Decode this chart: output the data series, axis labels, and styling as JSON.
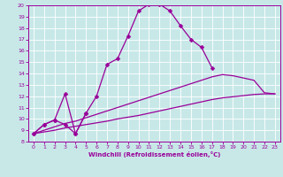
{
  "xlabel": "Windchill (Refroidissement éolien,°C)",
  "xlim": [
    -0.5,
    23.5
  ],
  "ylim": [
    8,
    20
  ],
  "xticks": [
    0,
    1,
    2,
    3,
    4,
    5,
    6,
    7,
    8,
    9,
    10,
    11,
    12,
    13,
    14,
    15,
    16,
    17,
    18,
    19,
    20,
    21,
    22,
    23
  ],
  "yticks": [
    8,
    9,
    10,
    11,
    12,
    13,
    14,
    15,
    16,
    17,
    18,
    19,
    20
  ],
  "bg_color": "#c8e8e8",
  "line_color": "#990099",
  "grid_color": "#ffffff",
  "line1_x": [
    0,
    1,
    2,
    3,
    4,
    5,
    6,
    7,
    8,
    9,
    10,
    11,
    12,
    13,
    14,
    15,
    16,
    17
  ],
  "line1_y": [
    8.7,
    9.5,
    9.9,
    12.2,
    8.7,
    10.5,
    12.0,
    14.8,
    15.3,
    17.3,
    19.5,
    20.1,
    20.1,
    19.5,
    18.2,
    17.0,
    16.3,
    14.5
  ],
  "line2_x": [
    0,
    1,
    2,
    3,
    4,
    5,
    6,
    7,
    8,
    9,
    10,
    11,
    12,
    13,
    14,
    15,
    16,
    17,
    18,
    19,
    20,
    21,
    22,
    23
  ],
  "line2_y": [
    8.7,
    9.0,
    9.3,
    9.6,
    9.8,
    10.1,
    10.4,
    10.7,
    11.0,
    11.3,
    11.6,
    11.9,
    12.2,
    12.5,
    12.8,
    13.1,
    13.4,
    13.7,
    13.9,
    13.8,
    13.6,
    13.4,
    12.3,
    12.2
  ],
  "line3_x": [
    0,
    1,
    2,
    3,
    4,
    5,
    6,
    7,
    8,
    9,
    10,
    11,
    12,
    13,
    14,
    15,
    16,
    17,
    18,
    19,
    20,
    21,
    22,
    23
  ],
  "line3_y": [
    8.7,
    8.85,
    9.0,
    9.2,
    9.35,
    9.5,
    9.65,
    9.8,
    10.0,
    10.15,
    10.3,
    10.5,
    10.7,
    10.9,
    11.1,
    11.3,
    11.5,
    11.7,
    11.85,
    11.95,
    12.05,
    12.15,
    12.2,
    12.2
  ],
  "line4_x": [
    0,
    1,
    2,
    3,
    4,
    5
  ],
  "line4_y": [
    8.7,
    9.5,
    9.9,
    9.5,
    8.7,
    10.5
  ]
}
